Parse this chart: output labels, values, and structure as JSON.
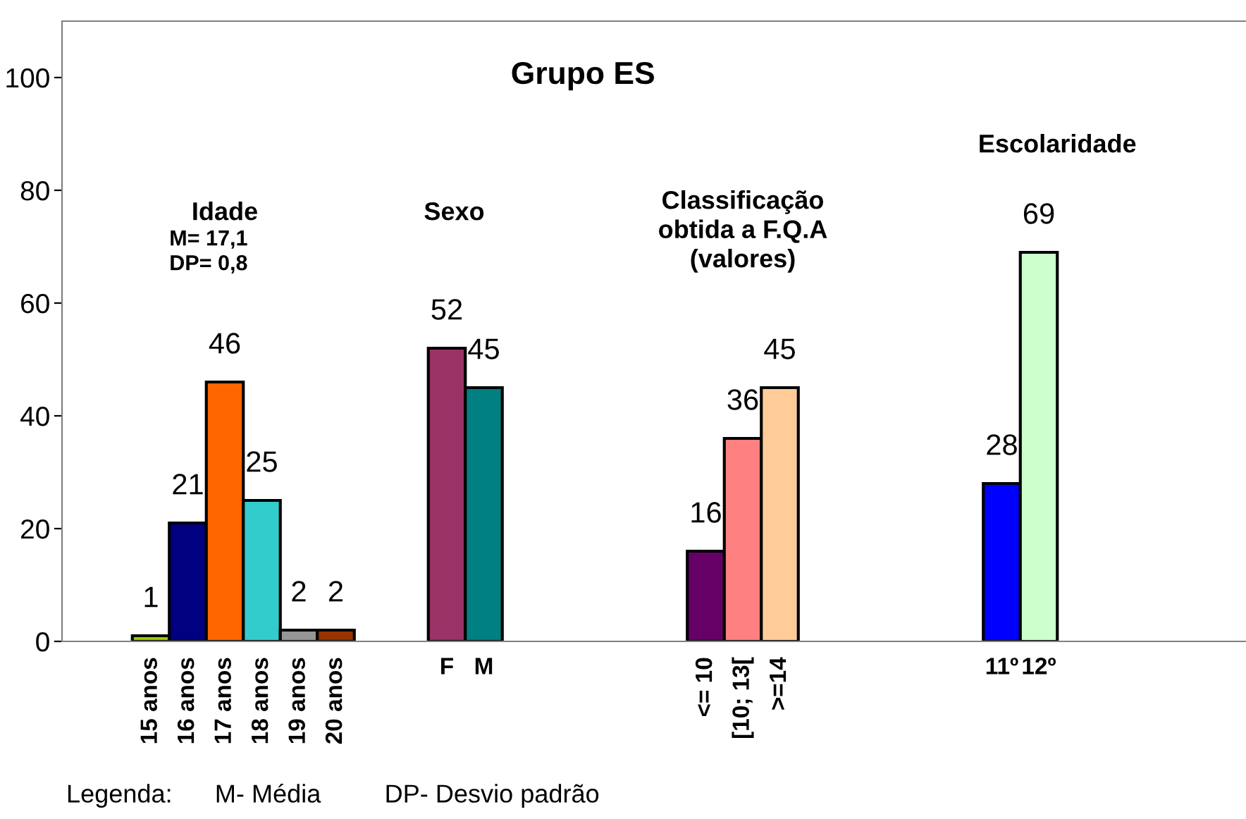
{
  "chart_data": {
    "type": "bar",
    "title": "Grupo ES",
    "categories": [
      "15 anos",
      "16 anos",
      "17 anos",
      "18 anos",
      "19 anos",
      "20 anos",
      null,
      null,
      "F",
      "M",
      null,
      null,
      null,
      null,
      null,
      "<= 10",
      "[10; 13[",
      ">=14",
      null,
      null,
      null,
      null,
      null,
      "11º",
      "12º"
    ],
    "values": [
      1,
      21,
      46,
      25,
      2,
      2,
      null,
      null,
      52,
      45,
      null,
      null,
      null,
      null,
      null,
      16,
      36,
      45,
      null,
      null,
      null,
      null,
      null,
      28,
      69
    ],
    "colors": [
      "#99cc00",
      "#000080",
      "#ff6600",
      "#33cccc",
      "#969696",
      "#993300",
      null,
      null,
      "#993366",
      "#008080",
      null,
      null,
      null,
      null,
      null,
      "#660066",
      "#ff8080",
      "#ffcc99",
      null,
      null,
      null,
      null,
      null,
      "#0000ff",
      "#ccffcc"
    ],
    "ylim": [
      0,
      110
    ],
    "yticks": [
      0,
      20,
      40,
      60,
      80,
      100
    ],
    "grid": false,
    "legend": false,
    "data_labels": true,
    "annotations": [
      "Idade",
      "M= 17,1\nDP= 0,8",
      "Sexo",
      "Classificação\nobtida a F.Q.A\n(valores)",
      "Escolaridade",
      "Legenda:      M- Média         DP- Desvio padrão"
    ]
  }
}
